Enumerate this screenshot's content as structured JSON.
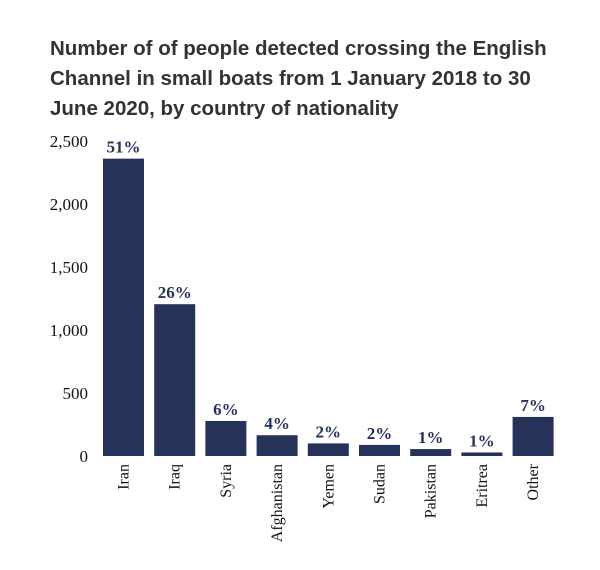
{
  "chart_data": {
    "type": "bar",
    "title": "Number of of people detected crossing the English Channel in small boats from 1 January 2018 to 30 June 2020, by country of nationality",
    "xlabel": "",
    "ylabel": "",
    "ylim": [
      0,
      2500
    ],
    "yticks": [
      0,
      500,
      1000,
      1500,
      2000,
      2500
    ],
    "ytick_labels": [
      "0",
      "500",
      "1,000",
      "1,500",
      "2,000",
      "2,500"
    ],
    "categories": [
      "Iran",
      "Iraq",
      "Syria",
      "Afghanistan",
      "Yemen",
      "Sudan",
      "Pakistan",
      "Eritrea",
      "Other"
    ],
    "values": [
      2360,
      1205,
      278,
      165,
      100,
      88,
      55,
      28,
      310
    ],
    "data_labels": [
      "51%",
      "26%",
      "6%",
      "4%",
      "2%",
      "2%",
      "1%",
      "1%",
      "7%"
    ],
    "grid": false,
    "legend": "none",
    "colors": {
      "bar": "#26325a",
      "label": "#26325a"
    }
  }
}
